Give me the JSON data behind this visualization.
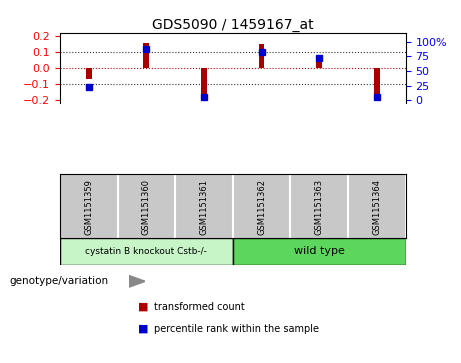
{
  "title": "GDS5090 / 1459167_at",
  "samples": [
    "GSM1151359",
    "GSM1151360",
    "GSM1151361",
    "GSM1151362",
    "GSM1151363",
    "GSM1151364"
  ],
  "red_values": [
    -0.065,
    0.155,
    -0.182,
    0.15,
    0.06,
    -0.182
  ],
  "blue_values": [
    22,
    88,
    5,
    83,
    72,
    5
  ],
  "ylim_left": [
    -0.22,
    0.22
  ],
  "ylim_right": [
    -5.5,
    115.5
  ],
  "yticks_left": [
    -0.2,
    -0.1,
    0.0,
    0.1,
    0.2
  ],
  "yticks_right": [
    0,
    25,
    50,
    75,
    100
  ],
  "bar_color": "#aa0000",
  "dot_color": "#0000cc",
  "zero_line_color": "#cc0000",
  "bg_color": "#ffffff",
  "sample_bg_color": "#c8c8c8",
  "group1_label": "cystatin B knockout Cstb-/-",
  "group2_label": "wild type",
  "group1_color": "#c8f5c8",
  "group2_color": "#5cd65c",
  "genotype_label": "genotype/variation",
  "legend_red_label": "transformed count",
  "legend_blue_label": "percentile rank within the sample"
}
